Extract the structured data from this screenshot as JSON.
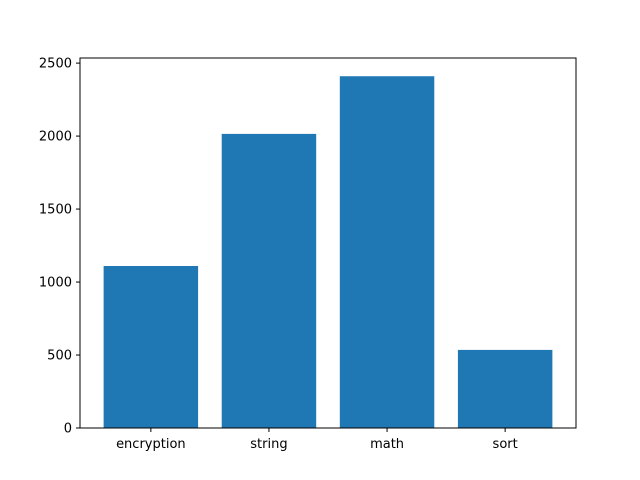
{
  "chart_data": {
    "type": "bar",
    "title": "",
    "xlabel": "",
    "ylabel": "",
    "categories": [
      "encryption",
      "string",
      "math",
      "sort"
    ],
    "values": [
      1110,
      2015,
      2410,
      535
    ],
    "ylim": [
      0,
      2535
    ],
    "yticks": [
      0,
      500,
      1000,
      1500,
      2000,
      2500
    ],
    "bar_color": "#1f77b4",
    "grid": false,
    "legend": "none"
  }
}
